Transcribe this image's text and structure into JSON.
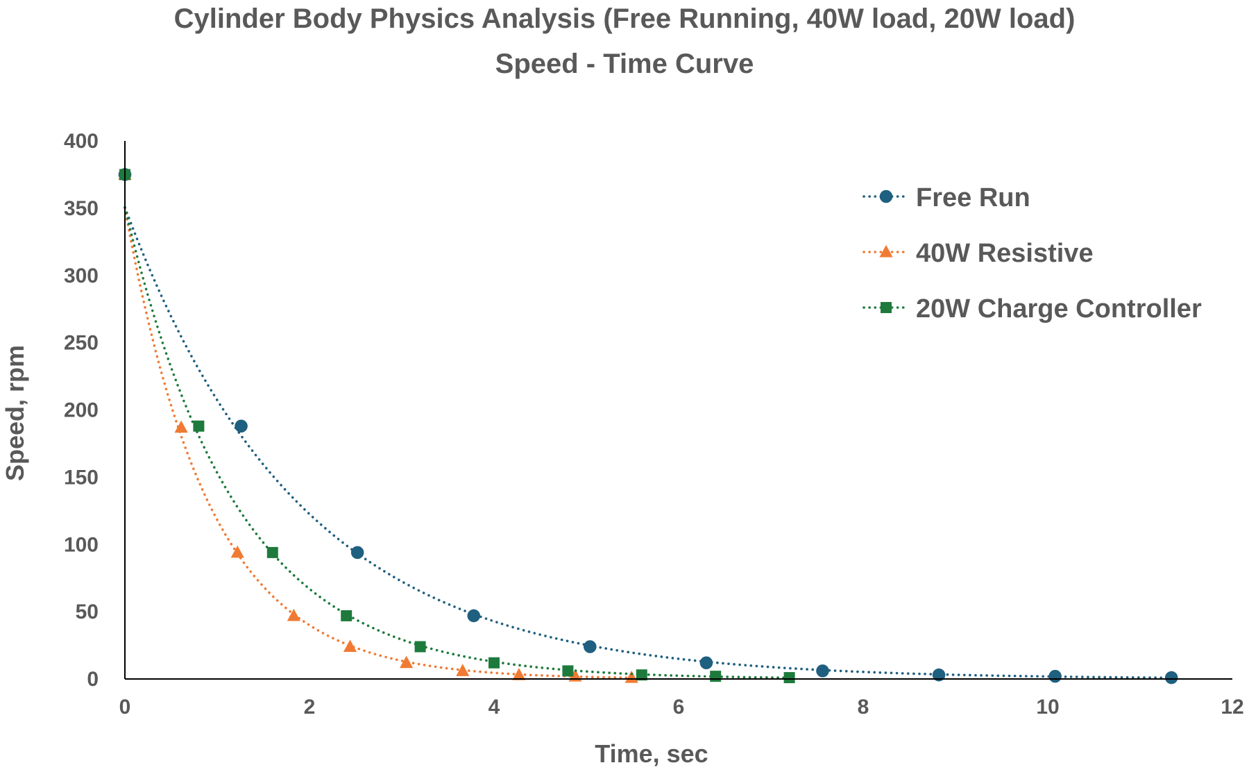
{
  "chart_data": {
    "type": "scatter",
    "title": "Cylinder Body Physics Analysis (Free Running, 40W load, 20W load)",
    "subtitle": "Speed - Time Curve",
    "xlabel": "Time, sec",
    "ylabel": "Speed, rpm",
    "xlim": [
      0,
      12
    ],
    "ylim": [
      0,
      400
    ],
    "xticks": [
      0,
      2,
      4,
      6,
      8,
      10,
      12
    ],
    "yticks": [
      0,
      50,
      100,
      150,
      200,
      250,
      300,
      350,
      400
    ],
    "grid": false,
    "legend_position": "top-right",
    "series": [
      {
        "name": "Free Run",
        "color": "#1F5F7F",
        "marker": "circle",
        "trendline": "exponential-dotted",
        "x": [
          0,
          1.26,
          2.52,
          3.78,
          5.04,
          6.3,
          7.56,
          8.82,
          10.08,
          11.34
        ],
        "y": [
          375,
          188,
          94,
          47,
          24,
          12,
          6,
          3,
          2,
          1
        ]
      },
      {
        "name": "40W Resistive",
        "color": "#F07A33",
        "marker": "triangle",
        "trendline": "exponential-dotted",
        "x": [
          0,
          0.61,
          1.22,
          1.83,
          2.44,
          3.05,
          3.66,
          4.27,
          4.88,
          5.49
        ],
        "y": [
          375,
          187,
          94,
          47,
          24,
          12,
          6,
          3,
          2,
          1
        ]
      },
      {
        "name": "20W Charge Controller",
        "color": "#1E7A3C",
        "marker": "square",
        "trendline": "exponential-dotted",
        "x": [
          0,
          0.8,
          1.6,
          2.4,
          3.2,
          4.0,
          4.8,
          5.6,
          6.4,
          7.2
        ],
        "y": [
          375,
          188,
          94,
          47,
          24,
          12,
          6,
          3,
          2,
          1
        ]
      }
    ]
  }
}
